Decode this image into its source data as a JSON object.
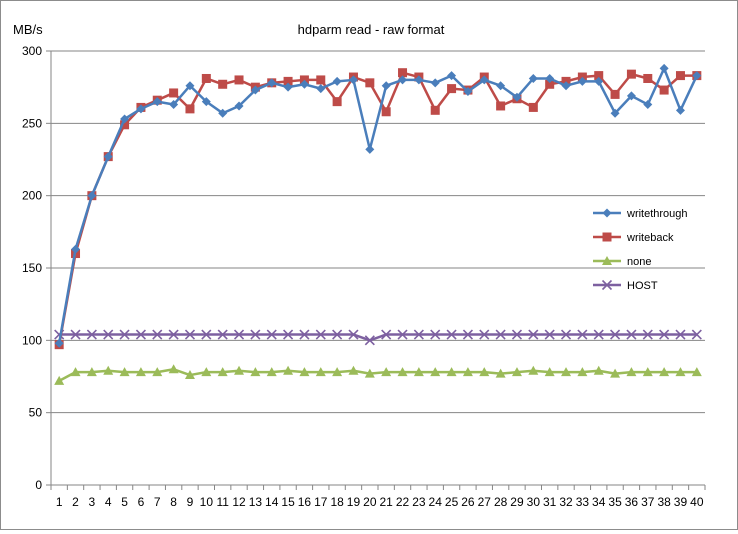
{
  "chart_data": {
    "type": "line",
    "title": "hdparm read - raw format",
    "ylabel": "MB/s",
    "xlabel": "",
    "ylim": [
      0,
      300
    ],
    "yticks": [
      0,
      50,
      100,
      150,
      200,
      250,
      300
    ],
    "grid": true,
    "legend_position": "right",
    "x": [
      1,
      2,
      3,
      4,
      5,
      6,
      7,
      8,
      9,
      10,
      11,
      12,
      13,
      14,
      15,
      16,
      17,
      18,
      19,
      20,
      21,
      22,
      23,
      24,
      25,
      26,
      27,
      28,
      29,
      30,
      31,
      32,
      33,
      34,
      35,
      36,
      37,
      38,
      39,
      40
    ],
    "series": [
      {
        "name": "writethrough",
        "color": "#4a7ebb",
        "marker": "diamond",
        "values": [
          98,
          163,
          200,
          227,
          253,
          260,
          265,
          263,
          276,
          265,
          257,
          262,
          273,
          278,
          275,
          277,
          274,
          279,
          280,
          232,
          276,
          280,
          280,
          278,
          283,
          272,
          280,
          276,
          268,
          281,
          281,
          276,
          279,
          279,
          257,
          269,
          263,
          288,
          259,
          283
        ]
      },
      {
        "name": "writeback",
        "color": "#be4b48",
        "marker": "square",
        "values": [
          97,
          160,
          200,
          227,
          249,
          261,
          266,
          271,
          260,
          281,
          277,
          280,
          275,
          278,
          279,
          280,
          280,
          265,
          282,
          278,
          258,
          285,
          282,
          259,
          274,
          273,
          282,
          262,
          267,
          261,
          277,
          279,
          282,
          283,
          270,
          284,
          281,
          273,
          283,
          283
        ]
      },
      {
        "name": "none",
        "color": "#9bbb59",
        "marker": "triangle",
        "values": [
          72,
          78,
          78,
          79,
          78,
          78,
          78,
          80,
          76,
          78,
          78,
          79,
          78,
          78,
          79,
          78,
          78,
          78,
          79,
          77,
          78,
          78,
          78,
          78,
          78,
          78,
          78,
          77,
          78,
          79,
          78,
          78,
          78,
          79,
          77,
          78,
          78,
          78,
          78,
          78
        ]
      },
      {
        "name": "HOST",
        "color": "#7d60a0",
        "marker": "x",
        "values": [
          104,
          104,
          104,
          104,
          104,
          104,
          104,
          104,
          104,
          104,
          104,
          104,
          104,
          104,
          104,
          104,
          104,
          104,
          104,
          100,
          104,
          104,
          104,
          104,
          104,
          104,
          104,
          104,
          104,
          104,
          104,
          104,
          104,
          104,
          104,
          104,
          104,
          104,
          104,
          104
        ]
      }
    ]
  }
}
